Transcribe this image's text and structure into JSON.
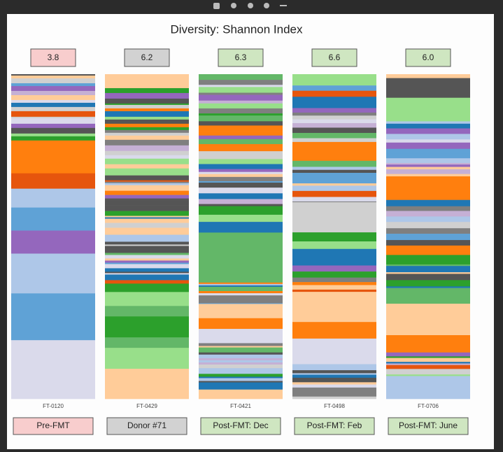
{
  "title": "Diversity: Shannon Index",
  "samples": [
    {
      "index": "3.8",
      "id": "FT-0120",
      "group": "Pre-FMT"
    },
    {
      "index": "6.2",
      "id": "FT-0429",
      "group": "Donor #71"
    },
    {
      "index": "6.3",
      "id": "FT-0421",
      "group": "Post-FMT: Dec"
    },
    {
      "index": "6.6",
      "id": "FT-0498",
      "group": "Post-FMT: Feb"
    },
    {
      "index": "6.0",
      "id": "FT-0706",
      "group": "Post-FMT: June"
    }
  ]
}
